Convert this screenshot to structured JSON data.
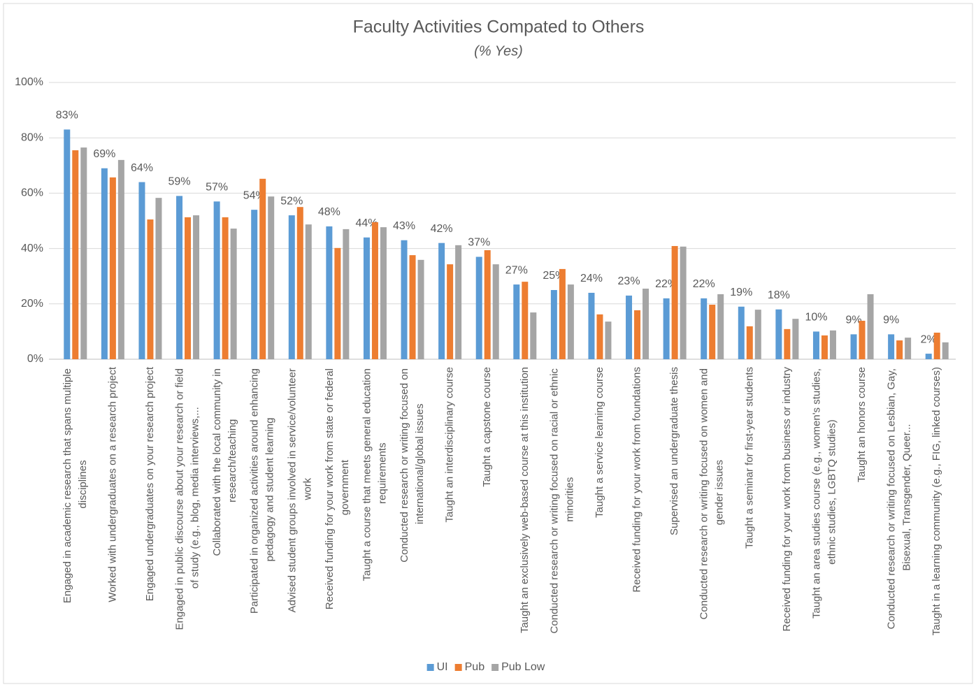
{
  "chart_data": {
    "type": "bar",
    "title": "Faculty Activities Compated to Others",
    "subtitle": "(% Yes)",
    "categories": [
      "Engaged in academic research that spans multiple disciplines",
      "Worked with undergraduates on a research project",
      "Engaged undergraduates on your research project",
      "Engaged in public discourse about your research or field of study (e.g., blog, media interviews,...",
      "Collaborated with the local community in research/teaching",
      "Participated in organized activities around enhancing pedagogy and student learning",
      "Advised student groups involved in service/volunteer work",
      "Received funding for your work from state or federal government",
      "Taught a course that meets general education requirements",
      "Conducted research or writing focused on international/global issues",
      "Taught an interdisciplinary course",
      "Taught a capstone course",
      "Taught an exclusively web-based course at this institution",
      "Conducted research or writing focused on racial or ethnic minorities",
      "Taught a service learning course",
      "Received funding for your work from foundations",
      "Supervised an undergraduate thesis",
      "Conducted research or writing focused on women and gender issues",
      "Taught a seminar for first-year students",
      "Received funding for your work from business or industry",
      "Taught an area studies course (e.g., women's studies, ethnic studies, LGBTQ studies)",
      "Taught an honors course",
      "Conducted research or writing focused on Lesbian, Gay, Bisexual, Transgender, Queer...",
      "Taught in a learning community (e.g., FIG, linked courses)"
    ],
    "series": [
      {
        "name": "UI",
        "color": "#5b9bd5",
        "values": [
          83,
          69,
          64,
          59,
          57,
          54,
          52,
          48,
          44,
          43,
          42,
          37,
          27,
          25,
          24,
          23,
          22,
          22,
          19,
          18,
          10,
          9,
          9,
          2
        ],
        "value_labels": [
          "83%",
          "69%",
          "64%",
          "59%",
          "57%",
          "54%",
          "52%",
          "48%",
          "44%",
          "43%",
          "42%",
          "37%",
          "27%",
          "25%",
          "24%",
          "23%",
          "22%",
          "22%",
          "19%",
          "18%",
          "10%",
          "9%",
          "9%",
          "2%"
        ]
      },
      {
        "name": "Pub",
        "color": "#ed7d31",
        "values": [
          75.5,
          65.7,
          50.5,
          51.3,
          51.3,
          65.2,
          55,
          40.2,
          49.5,
          37.6,
          34.3,
          39.4,
          28,
          32.6,
          16.2,
          17.7,
          40.9,
          19.7,
          11.9,
          10.9,
          8.6,
          13.9,
          6.8,
          9.6
        ]
      },
      {
        "name": "Pub Low",
        "color": "#a5a5a5",
        "values": [
          76.5,
          72,
          58.3,
          52,
          47.2,
          58.8,
          48.7,
          47,
          47.7,
          35.9,
          41.2,
          34.3,
          16.9,
          27,
          13.6,
          25.5,
          40.7,
          23.5,
          17.9,
          14.6,
          10.4,
          23.5,
          7.8,
          6.1
        ]
      }
    ],
    "ylim": [
      0,
      100
    ],
    "yticks": [
      {
        "value": 0,
        "label": "0%"
      },
      {
        "value": 20,
        "label": "20%"
      },
      {
        "value": 40,
        "label": "40%"
      },
      {
        "value": 60,
        "label": "60%"
      },
      {
        "value": 80,
        "label": "80%"
      },
      {
        "value": 100,
        "label": "100%"
      }
    ],
    "grid": true,
    "legend": "bottom"
  }
}
